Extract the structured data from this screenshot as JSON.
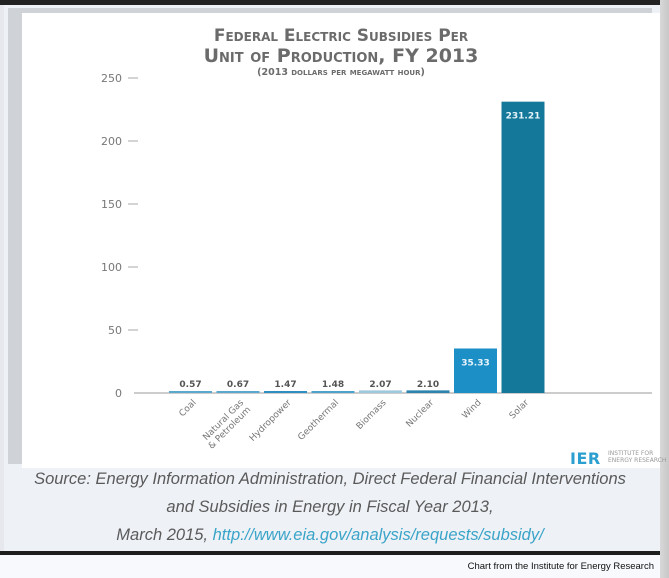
{
  "chart_data": {
    "type": "bar",
    "title_line1": "Federal Electric Subsidies Per",
    "title_line2": "Unit of Production, FY 2013",
    "subtitle": "(2013 dollars per megawatt hour)",
    "xlabel": "",
    "ylabel": "",
    "ylim": [
      0,
      250
    ],
    "yticks": [
      "0",
      "50",
      "100",
      "150",
      "200",
      "250"
    ],
    "ytick_values": [
      0,
      50,
      100,
      150,
      200,
      250
    ],
    "grid": false,
    "categories": [
      "Coal",
      "Natural Gas & Petroleum",
      "Hydropower",
      "Geothermal",
      "Biomass",
      "Nuclear",
      "Wind",
      "Solar"
    ],
    "category_lines": [
      [
        "Coal"
      ],
      [
        "Natural Gas",
        "& Petroleum"
      ],
      [
        "Hydropower"
      ],
      [
        "Geothermal"
      ],
      [
        "Biomass"
      ],
      [
        "Nuclear"
      ],
      [
        "Wind"
      ],
      [
        "Solar"
      ]
    ],
    "values": [
      0.57,
      0.67,
      1.47,
      1.48,
      2.07,
      2.1,
      35.33,
      231.21
    ],
    "value_labels": [
      "0.57",
      "0.67",
      "1.47",
      "1.48",
      "2.07",
      "2.10",
      "35.33",
      "231.21"
    ],
    "colors": [
      "#5aa9cc",
      "#5aa9cc",
      "#2c8fbf",
      "#4ba2cb",
      "#9cc9dc",
      "#2c84ad",
      "#1c8fc6",
      "#14789a"
    ]
  },
  "logo": {
    "mark": "IER",
    "line1": "INSTITUTE FOR",
    "line2": "ENERGY RESEARCH"
  },
  "source": {
    "line1": "Source: Energy Information Administration, Direct Federal Financial Interventions",
    "line2": "and Subsidies in Energy in Fiscal Year 2013,",
    "line3_prefix": "March 2015, ",
    "link": "http://www.eia.gov/analysis/requests/subsidy/"
  },
  "footer": {
    "credit": "Chart from the Institute for Energy Research"
  }
}
